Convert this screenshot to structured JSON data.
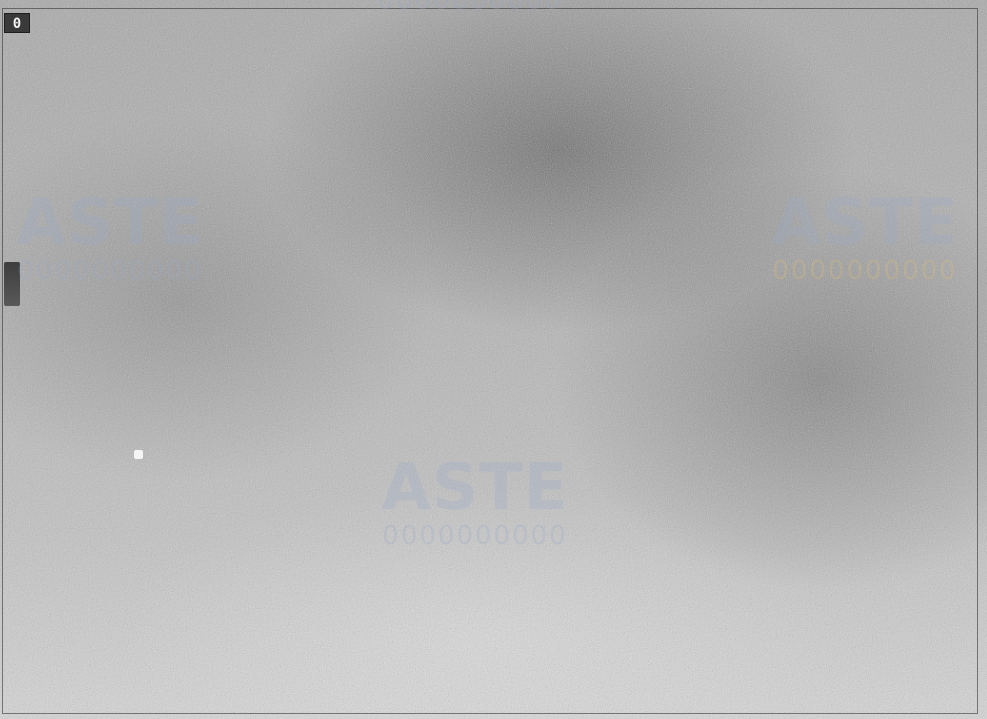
{
  "image": {
    "corner_label": "0",
    "watermark": {
      "mark": "ASTE",
      "line": "0000000000"
    }
  },
  "colors": {
    "base_gray": "#b3b3b3",
    "dark_gray": "#3a3a3a",
    "light_gray": "#d8d8d8",
    "watermark_blue": "#96aac8",
    "watermark_gold": "#dcbe78"
  }
}
